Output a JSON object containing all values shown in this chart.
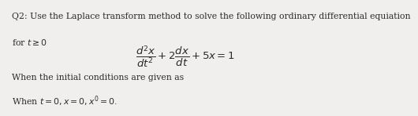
{
  "line1": "Q2: Use the Laplace transform method to solve the following ordinary differential equiation",
  "line2": "for $t \\geq 0$",
  "equation": "$\\dfrac{d^2x}{dt^2} + 2\\dfrac{dx}{dt} + 5x = 1$",
  "line3": "When the initial conditions are given as",
  "line4": "When $t = 0, x = 0, x' = 0.$",
  "bg_color": "#f0efed",
  "text_color": "#2a2a2a",
  "fontsize_text": 7.8,
  "fontsize_eq": 9.5
}
